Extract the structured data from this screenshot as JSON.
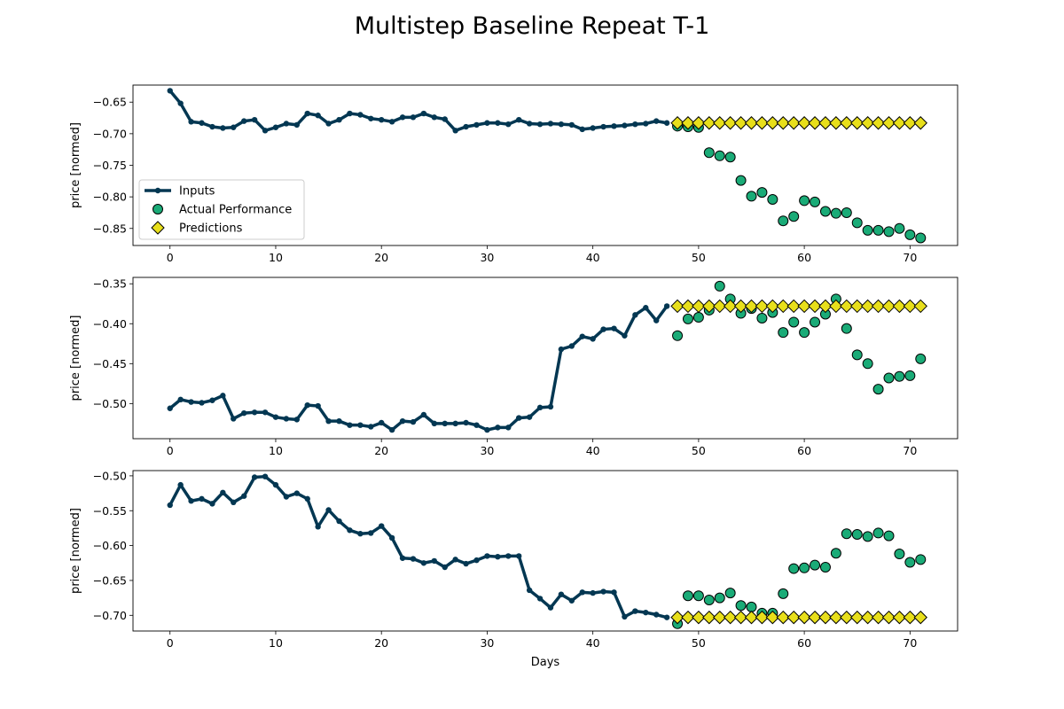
{
  "figure": {
    "title": "Multistep Baseline Repeat T-1"
  },
  "chart_data": [
    {
      "type": "line",
      "ylabel": "price [normed]",
      "xlabel": "",
      "xlim": [
        -3.5,
        74.5
      ],
      "ylim": [
        -0.877,
        -0.623
      ],
      "xticks": [
        0,
        10,
        20,
        30,
        40,
        50,
        60,
        70
      ],
      "yticks": [
        -0.65,
        -0.7,
        -0.75,
        -0.8,
        -0.85
      ],
      "legend": {
        "placement": "center-left",
        "entries": [
          "Inputs",
          "Actual Performance",
          "Predictions"
        ]
      },
      "inputs": {
        "x_start": 0,
        "values": [
          -0.632,
          -0.652,
          -0.681,
          -0.683,
          -0.689,
          -0.691,
          -0.69,
          -0.68,
          -0.678,
          -0.695,
          -0.69,
          -0.684,
          -0.686,
          -0.668,
          -0.671,
          -0.684,
          -0.678,
          -0.668,
          -0.67,
          -0.676,
          -0.678,
          -0.681,
          -0.674,
          -0.674,
          -0.668,
          -0.674,
          -0.677,
          -0.695,
          -0.689,
          -0.686,
          -0.683,
          -0.683,
          -0.685,
          -0.678,
          -0.684,
          -0.685,
          -0.684,
          -0.685,
          -0.686,
          -0.693,
          -0.691,
          -0.689,
          -0.688,
          -0.687,
          -0.685,
          -0.684,
          -0.68,
          -0.683
        ]
      },
      "actual": {
        "x_start": 48,
        "values": [
          -0.688,
          -0.689,
          -0.69,
          -0.73,
          -0.735,
          -0.737,
          -0.774,
          -0.799,
          -0.793,
          -0.804,
          -0.838,
          -0.831,
          -0.806,
          -0.808,
          -0.823,
          -0.826,
          -0.825,
          -0.841,
          -0.853,
          -0.853,
          -0.855,
          -0.85,
          -0.86,
          -0.865
        ]
      },
      "predictions": {
        "x_start": 48,
        "values": [
          -0.683,
          -0.683,
          -0.683,
          -0.683,
          -0.683,
          -0.683,
          -0.683,
          -0.683,
          -0.683,
          -0.683,
          -0.683,
          -0.683,
          -0.683,
          -0.683,
          -0.683,
          -0.683,
          -0.683,
          -0.683,
          -0.683,
          -0.683,
          -0.683,
          -0.683,
          -0.683,
          -0.683
        ]
      }
    },
    {
      "type": "line",
      "ylabel": "price [normed]",
      "xlabel": "",
      "xlim": [
        -3.5,
        74.5
      ],
      "ylim": [
        -0.544,
        -0.342
      ],
      "xticks": [
        0,
        10,
        20,
        30,
        40,
        50,
        60,
        70
      ],
      "yticks": [
        -0.35,
        -0.4,
        -0.45,
        -0.5
      ],
      "inputs": {
        "x_start": 0,
        "values": [
          -0.506,
          -0.495,
          -0.498,
          -0.499,
          -0.496,
          -0.49,
          -0.519,
          -0.512,
          -0.511,
          -0.511,
          -0.517,
          -0.519,
          -0.52,
          -0.502,
          -0.503,
          -0.522,
          -0.522,
          -0.527,
          -0.527,
          -0.529,
          -0.524,
          -0.533,
          -0.522,
          -0.523,
          -0.514,
          -0.525,
          -0.525,
          -0.525,
          -0.524,
          -0.527,
          -0.533,
          -0.53,
          -0.53,
          -0.518,
          -0.517,
          -0.505,
          -0.504,
          -0.432,
          -0.428,
          -0.416,
          -0.419,
          -0.407,
          -0.406,
          -0.415,
          -0.389,
          -0.38,
          -0.396,
          -0.378
        ]
      },
      "actual": {
        "x_start": 48,
        "values": [
          -0.415,
          -0.394,
          -0.392,
          -0.383,
          -0.353,
          -0.369,
          -0.387,
          -0.381,
          -0.393,
          -0.386,
          -0.411,
          -0.398,
          -0.411,
          -0.398,
          -0.388,
          -0.369,
          -0.406,
          -0.439,
          -0.45,
          -0.482,
          -0.468,
          -0.466,
          -0.465,
          -0.444
        ]
      },
      "predictions": {
        "x_start": 48,
        "values": [
          -0.378,
          -0.378,
          -0.378,
          -0.378,
          -0.378,
          -0.378,
          -0.378,
          -0.378,
          -0.378,
          -0.378,
          -0.378,
          -0.378,
          -0.378,
          -0.378,
          -0.378,
          -0.378,
          -0.378,
          -0.378,
          -0.378,
          -0.378,
          -0.378,
          -0.378,
          -0.378,
          -0.378
        ]
      }
    },
    {
      "type": "line",
      "ylabel": "price [normed]",
      "xlabel": "Days",
      "xlim": [
        -3.5,
        74.5
      ],
      "ylim": [
        -0.7225,
        -0.4925
      ],
      "xticks": [
        0,
        10,
        20,
        30,
        40,
        50,
        60,
        70
      ],
      "yticks": [
        -0.5,
        -0.55,
        -0.6,
        -0.65,
        -0.7
      ],
      "inputs": {
        "x_start": 0,
        "values": [
          -0.542,
          -0.513,
          -0.536,
          -0.533,
          -0.54,
          -0.524,
          -0.538,
          -0.529,
          -0.502,
          -0.501,
          -0.513,
          -0.53,
          -0.525,
          -0.533,
          -0.573,
          -0.549,
          -0.565,
          -0.578,
          -0.583,
          -0.582,
          -0.572,
          -0.589,
          -0.618,
          -0.619,
          -0.625,
          -0.622,
          -0.631,
          -0.62,
          -0.626,
          -0.621,
          -0.615,
          -0.616,
          -0.615,
          -0.615,
          -0.664,
          -0.676,
          -0.689,
          -0.67,
          -0.679,
          -0.667,
          -0.668,
          -0.666,
          -0.667,
          -0.702,
          -0.694,
          -0.696,
          -0.699,
          -0.703
        ]
      },
      "actual": {
        "x_start": 48,
        "values": [
          -0.712,
          -0.672,
          -0.672,
          -0.678,
          -0.675,
          -0.668,
          -0.686,
          -0.688,
          -0.697,
          -0.697,
          -0.669,
          -0.633,
          -0.632,
          -0.628,
          -0.631,
          -0.611,
          -0.583,
          -0.584,
          -0.587,
          -0.582,
          -0.586,
          -0.612,
          -0.624,
          -0.62
        ]
      },
      "predictions": {
        "x_start": 48,
        "values": [
          -0.703,
          -0.703,
          -0.703,
          -0.703,
          -0.703,
          -0.703,
          -0.703,
          -0.703,
          -0.703,
          -0.703,
          -0.703,
          -0.703,
          -0.703,
          -0.703,
          -0.703,
          -0.703,
          -0.703,
          -0.703,
          -0.703,
          -0.703,
          -0.703,
          -0.703,
          -0.703,
          -0.703
        ]
      }
    }
  ],
  "colors": {
    "inputs": "#033752",
    "actual_fill": "#1aab77",
    "prediction_fill": "#e8df1b",
    "marker_edge": "#000000"
  }
}
